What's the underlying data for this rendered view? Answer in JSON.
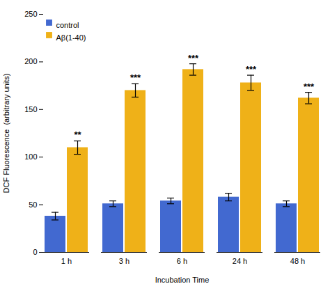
{
  "chart_data": {
    "type": "bar",
    "xlabel": "Incubation Time",
    "ylabel": "DCF Fluorescence  (arbitrary units)",
    "categories": [
      "1 h",
      "3 h",
      "6 h",
      "24 h",
      "48 h"
    ],
    "series": [
      {
        "name": "control",
        "values": [
          38,
          51,
          54,
          58,
          51
        ],
        "errors": [
          4,
          3,
          3,
          4,
          3
        ]
      },
      {
        "name": "Aβ(1-40)",
        "values": [
          110,
          170,
          192,
          178,
          162
        ],
        "errors": [
          7,
          7,
          6,
          8,
          6
        ],
        "significance": [
          "**",
          "***",
          "***",
          "***",
          "***"
        ]
      }
    ],
    "ylim": [
      0,
      250
    ],
    "yticks": [
      0,
      50,
      100,
      150,
      200,
      250
    ],
    "legend": "upper left"
  }
}
